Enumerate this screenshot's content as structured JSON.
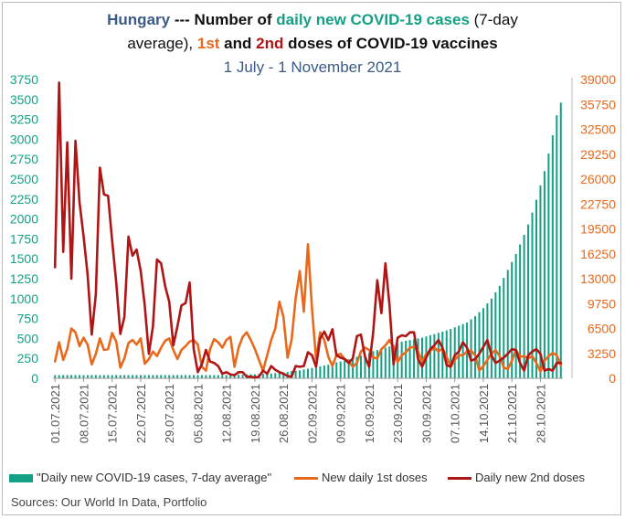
{
  "title": {
    "country": "Hungary",
    "sep": " --- Number of ",
    "cases_phrase": "daily new COVID-19 cases",
    "suffix1": " (7-day",
    "line2_start": "average), ",
    "dose1": "1st",
    "and": " and ",
    "dose2": "2nd",
    "line2_end": " doses of COVID-19 vaccines",
    "period": "1 July - 1 November 2021"
  },
  "legend": {
    "cases": "\"Daily new COVID-19 cases, 7-day average\"",
    "first": "New daily 1st doses",
    "second": "Daily new 2nd doses"
  },
  "source": "Sources: Our World In Data, Portfolio",
  "colors": {
    "cases": "#14a085",
    "first": "#e8691c",
    "second": "#b01515",
    "left_axis": "#14a085",
    "right_axis": "#e8691c"
  },
  "chart_data": {
    "type": "bar+line",
    "x_tick_labels": [
      "01.07.2021",
      "08.07.2021",
      "15.07.2021",
      "22.07.2021",
      "29.07.2021",
      "05.08.2021",
      "12.08.2021",
      "19.08.2021",
      "26.08.2021",
      "02.09.2021",
      "09.09.2021",
      "16.09.2021",
      "23.09.2021",
      "30.09.2021",
      "07.10.2021",
      "14.10.2021",
      "21.10.2021",
      "28.10.2021"
    ],
    "y_left_ticks": [
      0,
      250,
      500,
      750,
      1000,
      1250,
      1500,
      1750,
      2000,
      2250,
      2500,
      2750,
      3000,
      3250,
      3500,
      3750
    ],
    "y_left_lim": [
      0,
      3750
    ],
    "y_right_ticks": [
      0,
      3250,
      6500,
      9750,
      13000,
      16250,
      19500,
      22750,
      26000,
      29250,
      32500,
      35750,
      39000
    ],
    "y_right_lim": [
      0,
      39000
    ],
    "series": [
      {
        "name": "\"Daily new COVID-19 cases, 7-day average\"",
        "kind": "bar",
        "axis": "left",
        "values": [
          40,
          40,
          40,
          40,
          40,
          40,
          40,
          40,
          40,
          40,
          40,
          40,
          40,
          40,
          40,
          40,
          40,
          40,
          40,
          40,
          40,
          40,
          40,
          40,
          40,
          40,
          40,
          40,
          40,
          40,
          40,
          40,
          40,
          40,
          40,
          40,
          40,
          40,
          40,
          40,
          40,
          40,
          40,
          45,
          45,
          45,
          45,
          50,
          50,
          50,
          55,
          55,
          55,
          60,
          65,
          70,
          75,
          80,
          90,
          95,
          100,
          110,
          120,
          130,
          140,
          150,
          160,
          170,
          185,
          200,
          210,
          225,
          240,
          255,
          270,
          285,
          300,
          320,
          340,
          355,
          370,
          385,
          400,
          420,
          440,
          460,
          470,
          480,
          490,
          500,
          510,
          525,
          540,
          555,
          570,
          585,
          600,
          620,
          640,
          660,
          680,
          700,
          740,
          780,
          830,
          880,
          940,
          1000,
          1080,
          1160,
          1260,
          1360,
          1460,
          1560,
          1680,
          1800,
          1930,
          2080,
          2240,
          2420,
          2600,
          2820,
          3050,
          3300,
          3460
        ]
      },
      {
        "name": "New daily 1st doses",
        "kind": "line",
        "axis": "right",
        "values": [
          2200,
          4700,
          2400,
          3800,
          6500,
          6000,
          4200,
          5300,
          4400,
          1800,
          3200,
          5200,
          3700,
          3800,
          5900,
          4800,
          1400,
          2600,
          4600,
          5000,
          4400,
          5200,
          1900,
          2500,
          3500,
          2900,
          4000,
          4900,
          5200,
          3700,
          2500,
          3700,
          4200,
          4800,
          5000,
          4400,
          1500,
          1000,
          3800,
          5100,
          4700,
          4000,
          5000,
          5400,
          1500,
          4000,
          5400,
          6000,
          5000,
          3800,
          2400,
          1000,
          3000,
          5000,
          6500,
          10000,
          8000,
          2700,
          5000,
          10500,
          14000,
          8700,
          17500,
          9000,
          2500,
          6000,
          5000,
          2800,
          1600,
          3000,
          3200,
          2500,
          2200,
          1500,
          2000,
          3500,
          4000,
          3700,
          2700,
          2600,
          3800,
          4300,
          5000,
          4000,
          2100,
          3000,
          3400,
          4000,
          4100,
          3500,
          2200,
          3200,
          3600,
          4000,
          3500,
          3900,
          2800,
          1500,
          2400,
          3000,
          3000,
          3500,
          3600,
          3000,
          1000,
          1600,
          2400,
          3200,
          3700,
          2900,
          1400,
          1200,
          2300,
          3700,
          2800,
          2900,
          2600,
          2900,
          2000,
          900,
          2300,
          2900,
          3300,
          3000,
          1700
        ]
      },
      {
        "name": "Daily new 2nd doses",
        "kind": "line",
        "axis": "right",
        "values": [
          14500,
          38600,
          16500,
          30800,
          13000,
          31000,
          23000,
          18500,
          13500,
          5700,
          11000,
          27500,
          24000,
          23800,
          18000,
          12500,
          5800,
          8000,
          18500,
          16000,
          16800,
          14000,
          9500,
          3200,
          6800,
          15500,
          15000,
          12000,
          10000,
          4300,
          6800,
          9500,
          9800,
          12500,
          3800,
          800,
          1800,
          3700,
          2200,
          2000,
          1600,
          600,
          800,
          500,
          400,
          800,
          800,
          200,
          200,
          100,
          200,
          1000,
          600,
          1600,
          1100,
          800,
          600,
          300,
          200,
          1600,
          1500,
          1600,
          3400,
          3000,
          1500,
          5200,
          6100,
          5000,
          6400,
          3000,
          2700,
          2500,
          2000,
          2600,
          5500,
          5700,
          2800,
          1500,
          6000,
          12800,
          8500,
          15000,
          9500,
          1800,
          5300,
          5600,
          5500,
          6000,
          6000,
          2500,
          1500,
          2700,
          3800,
          4300,
          5000,
          4000,
          1700,
          1500,
          3000,
          3500,
          4700,
          4000,
          2300,
          2500,
          3200,
          4100,
          5000,
          3000,
          2000,
          2300,
          2700,
          3200,
          3800,
          3700,
          2000,
          1000,
          3000,
          3500,
          3800,
          3200,
          1000,
          1200,
          1000,
          2000,
          2000
        ]
      }
    ]
  }
}
